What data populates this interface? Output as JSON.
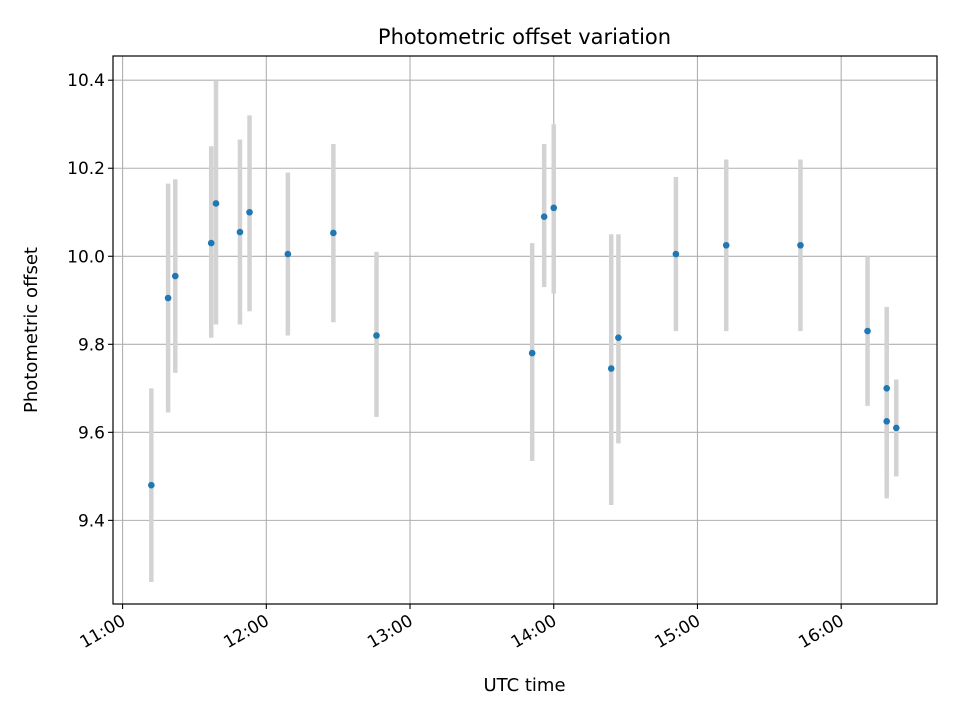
{
  "chart_data": {
    "type": "scatter",
    "title": "Photometric offset variation",
    "xlabel": "UTC time",
    "ylabel": "Photometric offset",
    "grid": true,
    "xlim": [
      "10:56",
      "16:40"
    ],
    "ylim": [
      9.21,
      10.455
    ],
    "x_ticks": [
      "11:00",
      "12:00",
      "13:00",
      "14:00",
      "15:00",
      "16:00"
    ],
    "y_ticks": [
      9.4,
      9.6,
      9.8,
      10.0,
      10.2,
      10.4
    ],
    "y_tick_labels": [
      "9.4",
      "9.6",
      "9.8",
      "10.0",
      "10.2",
      "10.4"
    ],
    "colors": {
      "points": "#1f77b4",
      "errorbars": "#d3d3d3",
      "grid": "#b0b0b0"
    },
    "points": [
      {
        "x": "11:12",
        "y": 9.48,
        "lo": 9.26,
        "hi": 9.7
      },
      {
        "x": "11:19",
        "y": 9.905,
        "lo": 9.645,
        "hi": 10.165
      },
      {
        "x": "11:22",
        "y": 9.955,
        "lo": 9.735,
        "hi": 10.175
      },
      {
        "x": "11:37",
        "y": 10.03,
        "lo": 9.815,
        "hi": 10.25
      },
      {
        "x": "11:39",
        "y": 10.12,
        "lo": 9.845,
        "hi": 10.4
      },
      {
        "x": "11:49",
        "y": 10.055,
        "lo": 9.845,
        "hi": 10.265
      },
      {
        "x": "11:53",
        "y": 10.1,
        "lo": 9.875,
        "hi": 10.32
      },
      {
        "x": "12:09",
        "y": 10.005,
        "lo": 9.82,
        "hi": 10.19
      },
      {
        "x": "12:28",
        "y": 10.053,
        "lo": 9.85,
        "hi": 10.255
      },
      {
        "x": "12:46",
        "y": 9.82,
        "lo": 9.635,
        "hi": 10.01
      },
      {
        "x": "13:51",
        "y": 9.78,
        "lo": 9.535,
        "hi": 10.03
      },
      {
        "x": "13:56",
        "y": 10.09,
        "lo": 9.93,
        "hi": 10.255
      },
      {
        "x": "14:00",
        "y": 10.11,
        "lo": 9.915,
        "hi": 10.3
      },
      {
        "x": "14:24",
        "y": 9.745,
        "lo": 9.435,
        "hi": 10.05
      },
      {
        "x": "14:27",
        "y": 9.815,
        "lo": 9.575,
        "hi": 10.05
      },
      {
        "x": "14:51",
        "y": 10.005,
        "lo": 9.83,
        "hi": 10.18
      },
      {
        "x": "15:12",
        "y": 10.025,
        "lo": 9.83,
        "hi": 10.22
      },
      {
        "x": "15:43",
        "y": 10.025,
        "lo": 9.83,
        "hi": 10.22
      },
      {
        "x": "16:11",
        "y": 9.83,
        "lo": 9.66,
        "hi": 10.0
      },
      {
        "x": "16:19",
        "y": 9.7,
        "lo": 9.51,
        "hi": 9.885
      },
      {
        "x": "16:19",
        "y": 9.625,
        "lo": 9.45,
        "hi": 9.81
      },
      {
        "x": "16:23",
        "y": 9.61,
        "lo": 9.5,
        "hi": 9.72
      }
    ]
  }
}
